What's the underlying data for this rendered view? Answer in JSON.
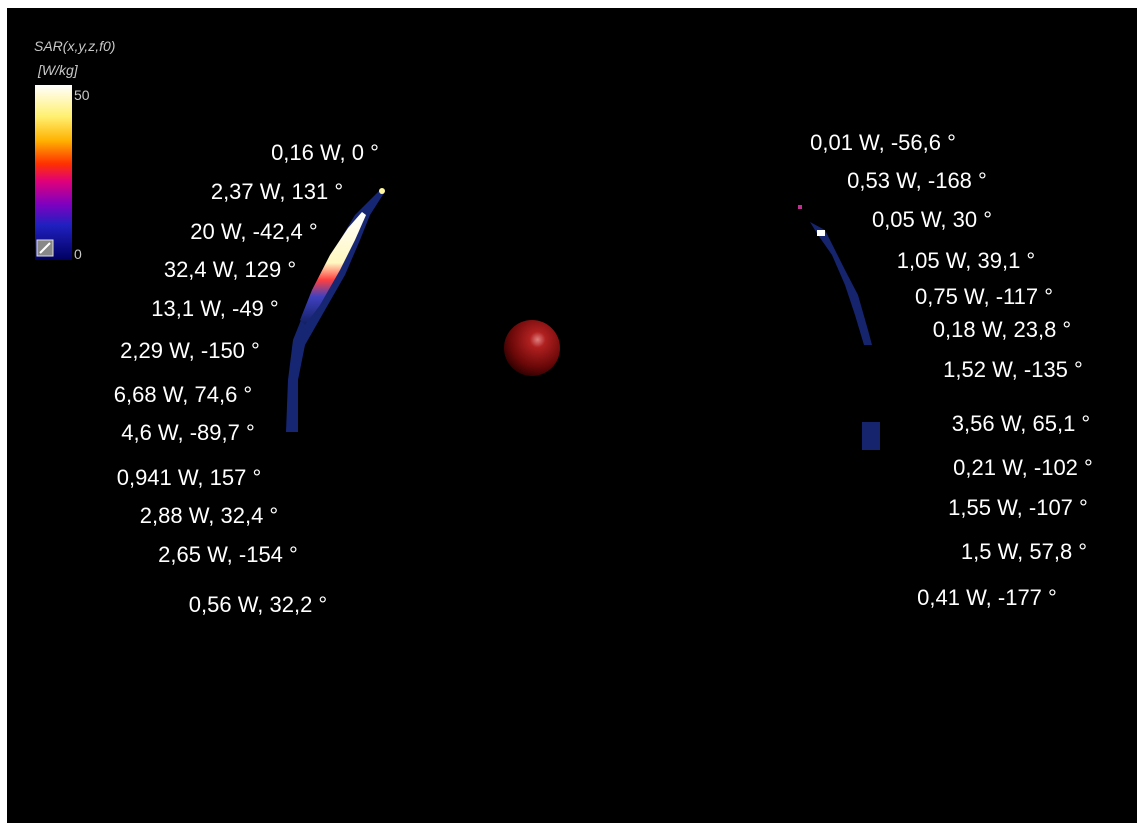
{
  "legend": {
    "title": "SAR(x,y,z,f0)",
    "unit": "[W/kg]",
    "max_label": "50",
    "min_label": "0"
  },
  "left_labels": [
    "0,16 W, 0 °",
    "2,37 W, 131 °",
    "20 W, -42,4 °",
    "32,4 W, 129 °",
    "13,1 W, -49 °",
    "2,29 W, -150 °",
    "6,68 W, 74,6 °",
    "4,6 W, -89,7 °",
    "0,941 W, 157 °",
    "2,88 W, 32,4 °",
    "2,65 W, -154 °",
    "0,56 W, 32,2 °"
  ],
  "right_labels": [
    "0,01 W, -56,6 °",
    "0,53 W, -168 °",
    "0,05 W, 30 °",
    "1,05 W, 39,1 °",
    "0,75 W, -117 °",
    "0,18 W, 23,8 °",
    "1,52 W, -135 °",
    "3,56 W, 65,1 °",
    "0,21 W, -102 °",
    "1,55 W, -107 °",
    "1,5 W, 57,8 °",
    "0,41 W, -177 °"
  ]
}
